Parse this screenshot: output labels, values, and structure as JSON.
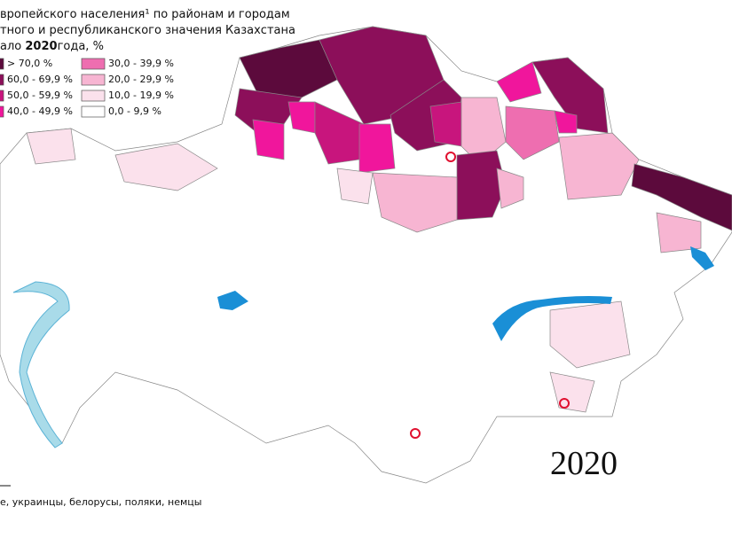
{
  "title": {
    "line1": "вропейского населения¹ по районам и городам",
    "line2": "тного и республиканского значения Казахстана",
    "line3": {
      "prefix": "ало ",
      "year": "2020",
      "suffix": "года, %"
    }
  },
  "legend": [
    {
      "label": "> 70,0 %",
      "color": "#5c0a3c"
    },
    {
      "label": "60,0 - 69,9 %",
      "color": "#8c0f5a"
    },
    {
      "label": "50,0 - 59,9 %",
      "color": "#c8157d"
    },
    {
      "label": "40,0 - 49,9 %",
      "color": "#f0169c"
    },
    {
      "label": "30,0 - 39,9 %",
      "color": "#ee6eb0"
    },
    {
      "label": "20,0 - 29,9 %",
      "color": "#f7b5d2"
    },
    {
      "label": "10,0 - 19,9 %",
      "color": "#fbe1ec"
    },
    {
      "label": "0,0 - 9,9 %",
      "color": "#ffffff"
    }
  ],
  "year_label": "2020",
  "footnote": "е, украинцы, белорусы, поляки, немцы"
}
